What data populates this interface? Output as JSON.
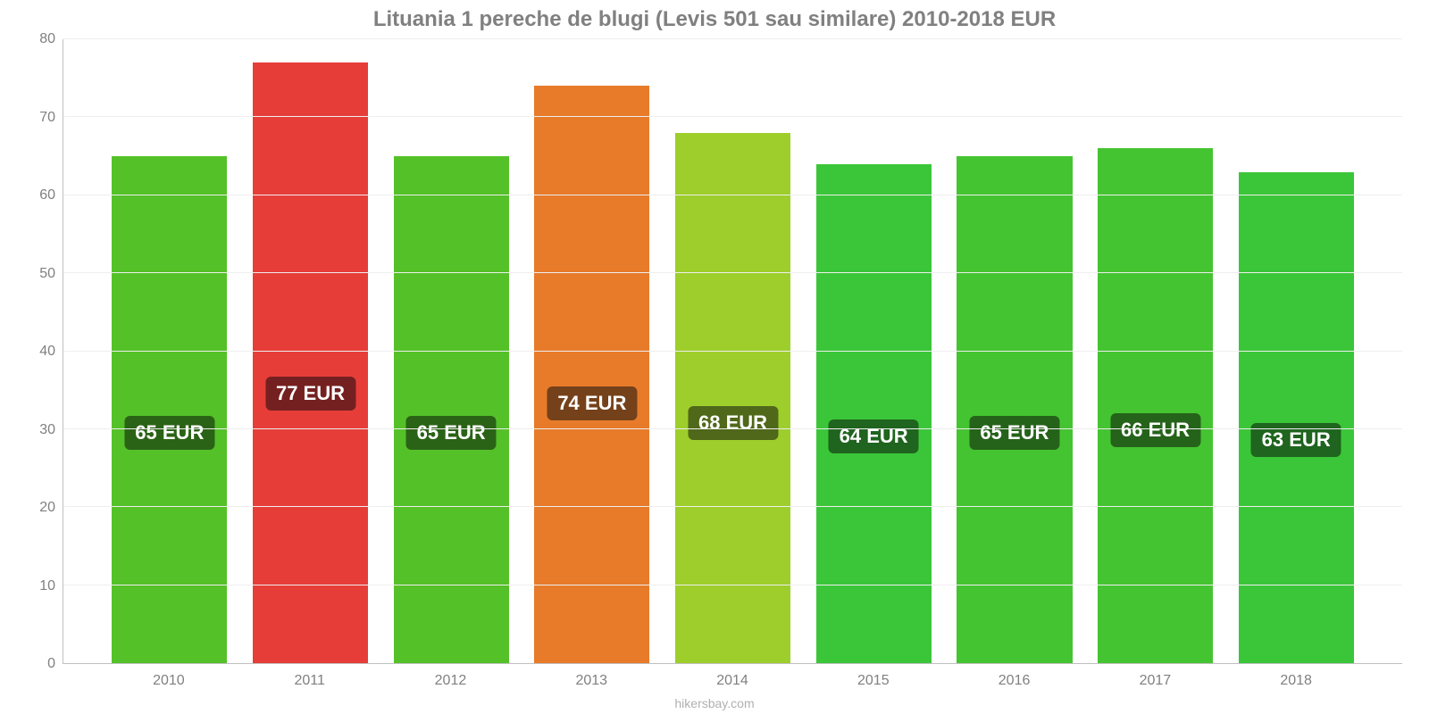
{
  "chart": {
    "type": "bar",
    "title": "Lituania 1 pereche de blugi (Levis 501 sau similare) 2010-2018 EUR",
    "title_color": "#808080",
    "title_fontsize": 24,
    "background_color": "#ffffff",
    "grid_color": "#eeeeee",
    "axis_color": "#c0c0c0",
    "label_color": "#808080",
    "ylim": [
      0,
      80
    ],
    "ytick_step": 10,
    "yticks": [
      0,
      10,
      20,
      30,
      40,
      50,
      60,
      70,
      80
    ],
    "categories": [
      "2010",
      "2011",
      "2012",
      "2013",
      "2014",
      "2015",
      "2016",
      "2017",
      "2018"
    ],
    "values": [
      65,
      77,
      65,
      74,
      68,
      64,
      65,
      66,
      63
    ],
    "value_labels": [
      "65 EUR",
      "77 EUR",
      "65 EUR",
      "74 EUR",
      "68 EUR",
      "64 EUR",
      "65 EUR",
      "66 EUR",
      "63 EUR"
    ],
    "bar_colors": [
      "#54c128",
      "#e73d39",
      "#54c128",
      "#e77b2a",
      "#9ece2b",
      "#3bc639",
      "#45c431",
      "#45c431",
      "#3bc639"
    ],
    "label_bg_colors": [
      "#2b6316",
      "#752020",
      "#2b6316",
      "#74411a",
      "#50681a",
      "#1f641f",
      "#25631a",
      "#25631a",
      "#1f641f"
    ],
    "label_text_color": "#ffffff",
    "label_fontsize": 22,
    "bar_width": 0.82,
    "source": "hikersbay.com",
    "source_color": "#b0b0b0"
  }
}
